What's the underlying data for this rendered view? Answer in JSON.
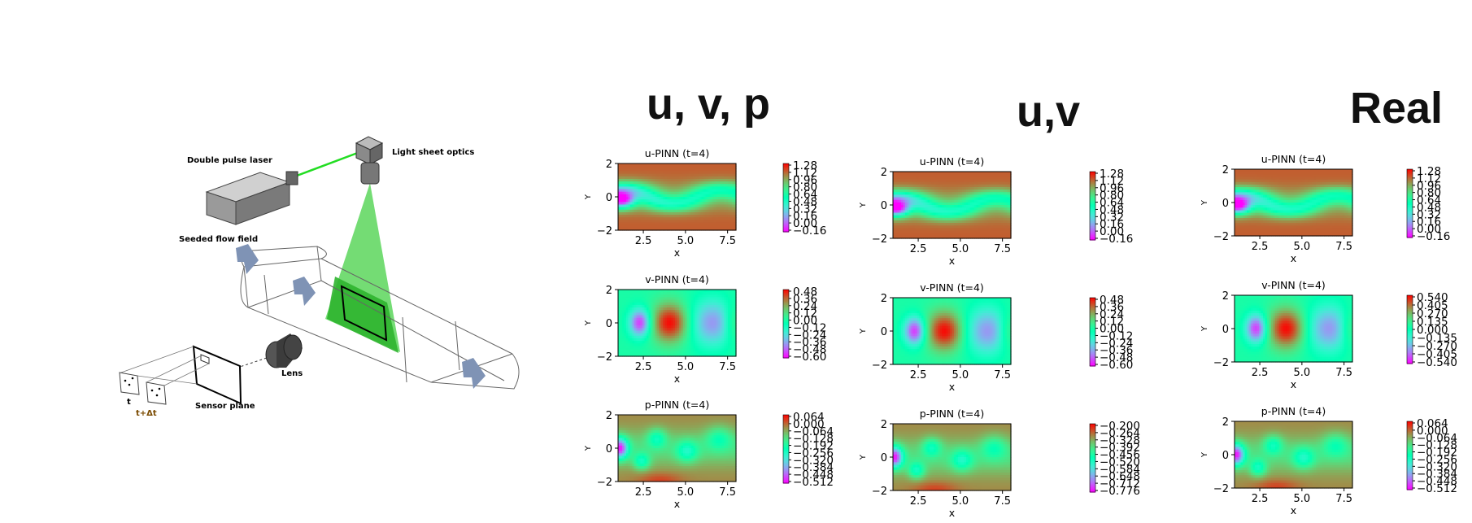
{
  "diagram": {
    "labels": {
      "laser": "Double pulse laser",
      "optics": "Light sheet optics",
      "flow": "Seeded flow field",
      "lens": "Lens",
      "sensor": "Sensor plane",
      "t": "t",
      "tdt": "t+Δt"
    }
  },
  "columns": [
    {
      "title": "u, v, p"
    },
    {
      "title": "u,v"
    },
    {
      "title": "Real"
    }
  ],
  "colormap": "rainbow",
  "chart_data": [
    {
      "type": "heatmap",
      "column": "u, v, p",
      "title": "u-PINN (t=4)",
      "xlabel": "x",
      "ylabel": "Y",
      "xlim": [
        1,
        8
      ],
      "ylim": [
        -2,
        2
      ],
      "xticks": [
        "2.5",
        "5.0",
        "7.5"
      ],
      "yticks": [
        "2",
        "0",
        "−2"
      ],
      "colorbar_ticks": [
        "1.28",
        "1.12",
        "0.96",
        "0.80",
        "0.64",
        "0.48",
        "0.32",
        "0.16",
        "0.00",
        "−0.16"
      ],
      "range": [
        -0.16,
        1.28
      ]
    },
    {
      "type": "heatmap",
      "column": "u, v, p",
      "title": "v-PINN (t=4)",
      "xlabel": "x",
      "ylabel": "Y",
      "xlim": [
        1,
        8
      ],
      "ylim": [
        -2,
        2
      ],
      "xticks": [
        "2.5",
        "5.0",
        "7.5"
      ],
      "yticks": [
        "2",
        "0",
        "−2"
      ],
      "colorbar_ticks": [
        "0.48",
        "0.36",
        "0.24",
        "0.12",
        "0.00",
        "−0.12",
        "−0.24",
        "−0.36",
        "−0.48",
        "−0.60"
      ],
      "range": [
        -0.6,
        0.48
      ]
    },
    {
      "type": "heatmap",
      "column": "u, v, p",
      "title": "p-PINN (t=4)",
      "xlabel": "x",
      "ylabel": "Y",
      "xlim": [
        1,
        8
      ],
      "ylim": [
        -2,
        2
      ],
      "xticks": [
        "2.5",
        "5.0",
        "7.5"
      ],
      "yticks": [
        "2",
        "0",
        "−2"
      ],
      "colorbar_ticks": [
        "0.064",
        "0.000",
        "−0.064",
        "−0.128",
        "−0.192",
        "−0.256",
        "−0.320",
        "−0.384",
        "−0.448",
        "−0.512"
      ],
      "range": [
        -0.512,
        0.064
      ]
    },
    {
      "type": "heatmap",
      "column": "u,v",
      "title": "u-PINN (t=4)",
      "xlabel": "x",
      "ylabel": "Y",
      "xlim": [
        1,
        8
      ],
      "ylim": [
        -2,
        2
      ],
      "xticks": [
        "2.5",
        "5.0",
        "7.5"
      ],
      "yticks": [
        "2",
        "0",
        "−2"
      ],
      "colorbar_ticks": [
        "1.28",
        "1.12",
        "0.96",
        "0.80",
        "0.64",
        "0.48",
        "0.32",
        "0.16",
        "0.00",
        "−0.16"
      ],
      "range": [
        -0.16,
        1.28
      ]
    },
    {
      "type": "heatmap",
      "column": "u,v",
      "title": "v-PINN (t=4)",
      "xlabel": "x",
      "ylabel": "Y",
      "xlim": [
        1,
        8
      ],
      "ylim": [
        -2,
        2
      ],
      "xticks": [
        "2.5",
        "5.0",
        "7.5"
      ],
      "yticks": [
        "2",
        "0",
        "−2"
      ],
      "colorbar_ticks": [
        "0.48",
        "0.36",
        "0.24",
        "0.12",
        "0.00",
        "−0.12",
        "−0.24",
        "−0.36",
        "−0.48",
        "−0.60"
      ],
      "range": [
        -0.6,
        0.48
      ]
    },
    {
      "type": "heatmap",
      "column": "u,v",
      "title": "p-PINN (t=4)",
      "xlabel": "x",
      "ylabel": "Y",
      "xlim": [
        1,
        8
      ],
      "ylim": [
        -2,
        2
      ],
      "xticks": [
        "2.5",
        "5.0",
        "7.5"
      ],
      "yticks": [
        "2",
        "0",
        "−2"
      ],
      "colorbar_ticks": [
        "−0.200",
        "−0.264",
        "−0.328",
        "−0.392",
        "−0.456",
        "−0.520",
        "−0.584",
        "−0.648",
        "−0.712",
        "−0.776"
      ],
      "range": [
        -0.776,
        -0.2
      ]
    },
    {
      "type": "heatmap",
      "column": "Real",
      "title": "u-PINN (t=4)",
      "xlabel": "x",
      "ylabel": "Y",
      "xlim": [
        1,
        8
      ],
      "ylim": [
        -2,
        2
      ],
      "xticks": [
        "2.5",
        "5.0",
        "7.5"
      ],
      "yticks": [
        "2",
        "0",
        "−2"
      ],
      "colorbar_ticks": [
        "1.28",
        "1.12",
        "0.96",
        "0.80",
        "0.64",
        "0.48",
        "0.32",
        "0.16",
        "0.00",
        "−0.16"
      ],
      "range": [
        -0.16,
        1.28
      ]
    },
    {
      "type": "heatmap",
      "column": "Real",
      "title": "v-PINN (t=4)",
      "xlabel": "x",
      "ylabel": "Y",
      "xlim": [
        1,
        8
      ],
      "ylim": [
        -2,
        2
      ],
      "xticks": [
        "2.5",
        "5.0",
        "7.5"
      ],
      "yticks": [
        "2",
        "0",
        "−2"
      ],
      "colorbar_ticks": [
        "0.540",
        "0.405",
        "0.270",
        "0.135",
        "0.000",
        "−0.135",
        "−0.270",
        "−0.405",
        "−0.540"
      ],
      "range": [
        -0.54,
        0.54
      ]
    },
    {
      "type": "heatmap",
      "column": "Real",
      "title": "p-PINN (t=4)",
      "xlabel": "x",
      "ylabel": "Y",
      "xlim": [
        1,
        8
      ],
      "ylim": [
        -2,
        2
      ],
      "xticks": [
        "2.5",
        "5.0",
        "7.5"
      ],
      "yticks": [
        "2",
        "0",
        "−2"
      ],
      "colorbar_ticks": [
        "0.064",
        "0.000",
        "−0.064",
        "−0.128",
        "−0.192",
        "−0.256",
        "−0.320",
        "−0.384",
        "−0.448",
        "−0.512"
      ],
      "range": [
        -0.512,
        0.064
      ]
    }
  ]
}
